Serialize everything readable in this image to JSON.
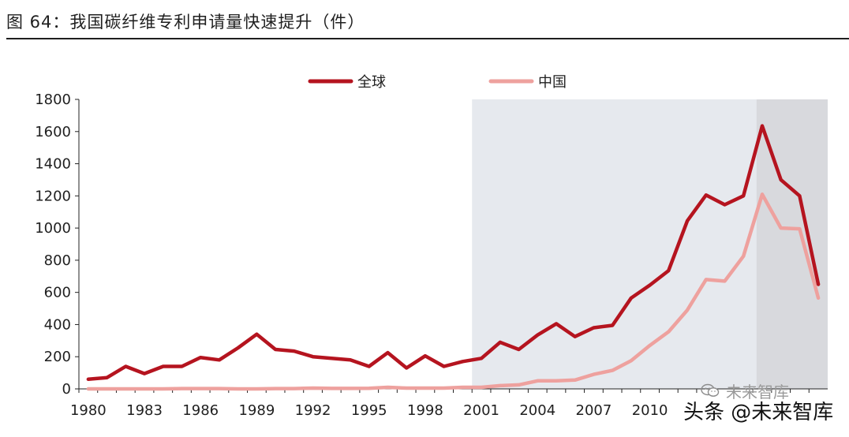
{
  "title": "图 64：我国碳纤维专利申请量快速提升（件）",
  "watermark_text": "头条 @未来智库",
  "wechat_text": "未来智库",
  "wechat_icon": "wechat-icon",
  "chart_data": {
    "type": "line",
    "title": "图 64：我国碳纤维专利申请量快速提升（件）",
    "xlabel": "",
    "ylabel": "",
    "x": [
      1980,
      1981,
      1982,
      1983,
      1984,
      1985,
      1986,
      1987,
      1988,
      1989,
      1990,
      1991,
      1992,
      1993,
      1994,
      1995,
      1996,
      1997,
      1998,
      1999,
      2000,
      2001,
      2002,
      2003,
      2004,
      2005,
      2006,
      2007,
      2008,
      2009,
      2010,
      2011,
      2012,
      2013,
      2014,
      2015,
      2016,
      2017,
      2018,
      2019
    ],
    "xticks": [
      "1980",
      "1983",
      "1986",
      "1989",
      "1992",
      "1995",
      "1998",
      "2001",
      "2004",
      "2007",
      "2010"
    ],
    "yticks": [
      "0",
      "200",
      "400",
      "600",
      "800",
      "1000",
      "1200",
      "1400",
      "1600",
      "1800"
    ],
    "ylim": [
      0,
      1800
    ],
    "xlim": [
      1980,
      2019
    ],
    "grid": false,
    "legend_position": "top-center",
    "shaded_regions": [
      {
        "from": 2001,
        "to": 2016.2,
        "color": "#e6e9ee"
      },
      {
        "from": 2016.2,
        "to": 2019.5,
        "color": "#d8d9dd"
      }
    ],
    "series": [
      {
        "name": "全球",
        "color": "#b5141f",
        "values": [
          60,
          70,
          140,
          95,
          140,
          140,
          195,
          180,
          255,
          340,
          245,
          235,
          200,
          190,
          180,
          140,
          225,
          130,
          205,
          140,
          170,
          190,
          290,
          245,
          335,
          405,
          325,
          380,
          395,
          565,
          645,
          735,
          1045,
          1205,
          1145,
          1200,
          1635,
          1300,
          1200,
          650
        ]
      },
      {
        "name": "中国",
        "color": "#eea19e",
        "values": [
          0,
          0,
          0,
          0,
          0,
          2,
          2,
          2,
          0,
          0,
          2,
          2,
          5,
          3,
          3,
          4,
          10,
          5,
          5,
          5,
          10,
          10,
          20,
          25,
          50,
          50,
          55,
          90,
          115,
          175,
          270,
          355,
          490,
          680,
          670,
          825,
          1210,
          1000,
          995,
          565
        ]
      }
    ]
  }
}
